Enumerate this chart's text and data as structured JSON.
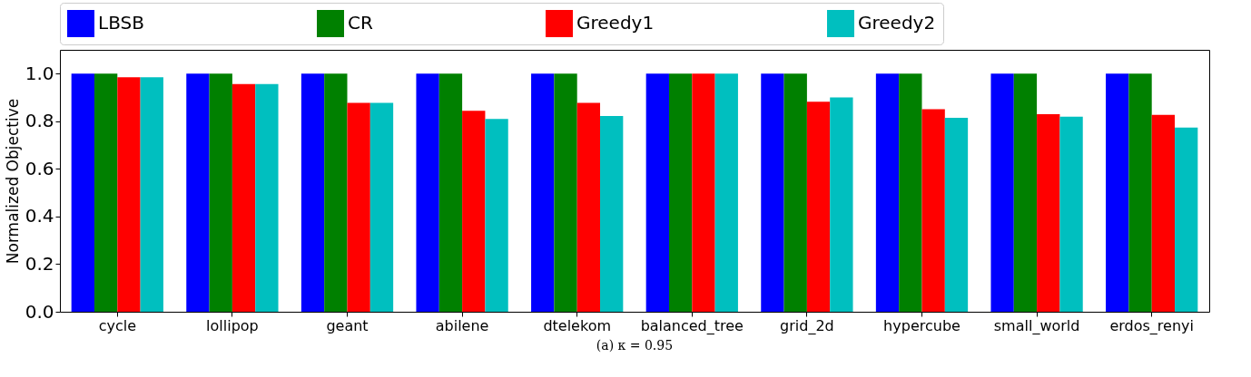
{
  "chart_data": {
    "type": "bar",
    "ylabel": "Normalized Objective",
    "categories": [
      "cycle",
      "lollipop",
      "geant",
      "abilene",
      "dtelekom",
      "balanced_tree",
      "grid_2d",
      "hypercube",
      "small_world",
      "erdos_renyi"
    ],
    "series": [
      {
        "name": "LBSB",
        "color": "#0000ff",
        "values": [
          1,
          1,
          1,
          1,
          1,
          1,
          1,
          1,
          1,
          1
        ]
      },
      {
        "name": "CR",
        "color": "#008000",
        "values": [
          1,
          1,
          1,
          1,
          1,
          1,
          1,
          1,
          1,
          1
        ]
      },
      {
        "name": "Greedy1",
        "color": "#ff0000",
        "values": [
          0.985,
          0.956,
          0.877,
          0.844,
          0.877,
          1,
          0.882,
          0.851,
          0.83,
          0.827
        ]
      },
      {
        "name": "Greedy2",
        "color": "#00bfbf",
        "values": [
          0.985,
          0.956,
          0.877,
          0.81,
          0.822,
          1,
          0.9,
          0.815,
          0.819,
          0.774
        ]
      }
    ],
    "ylim": [
      0,
      1.1
    ],
    "yticks": [
      {
        "value": 0,
        "label": "0.0"
      },
      {
        "value": 0.2,
        "label": "0.2"
      },
      {
        "value": 0.4,
        "label": "0.4"
      },
      {
        "value": 0.6,
        "label": "0.6"
      },
      {
        "value": 0.8,
        "label": "0.8"
      },
      {
        "value": 1,
        "label": "1.0"
      }
    ],
    "legend": "top",
    "grid": false,
    "annotations": [
      "(a) κ = 0.95"
    ]
  }
}
